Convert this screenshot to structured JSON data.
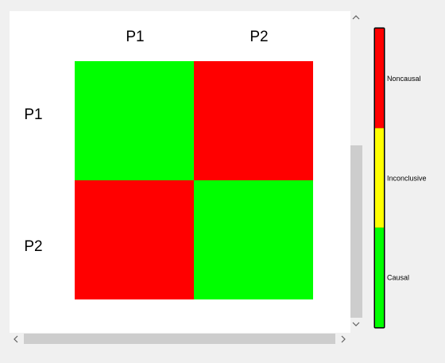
{
  "matrix": {
    "column_labels": [
      "P1",
      "P2"
    ],
    "row_labels": [
      "P1",
      "P2"
    ],
    "cells": [
      [
        "#00ff00",
        "#ff0000"
      ],
      [
        "#ff0000",
        "#00ff00"
      ]
    ]
  },
  "legend": {
    "items": [
      {
        "label": "Noncausal",
        "color": "#ff0000"
      },
      {
        "label": "Inconclusive",
        "color": "#ffff00"
      },
      {
        "label": "Causal",
        "color": "#00ff00"
      }
    ]
  }
}
